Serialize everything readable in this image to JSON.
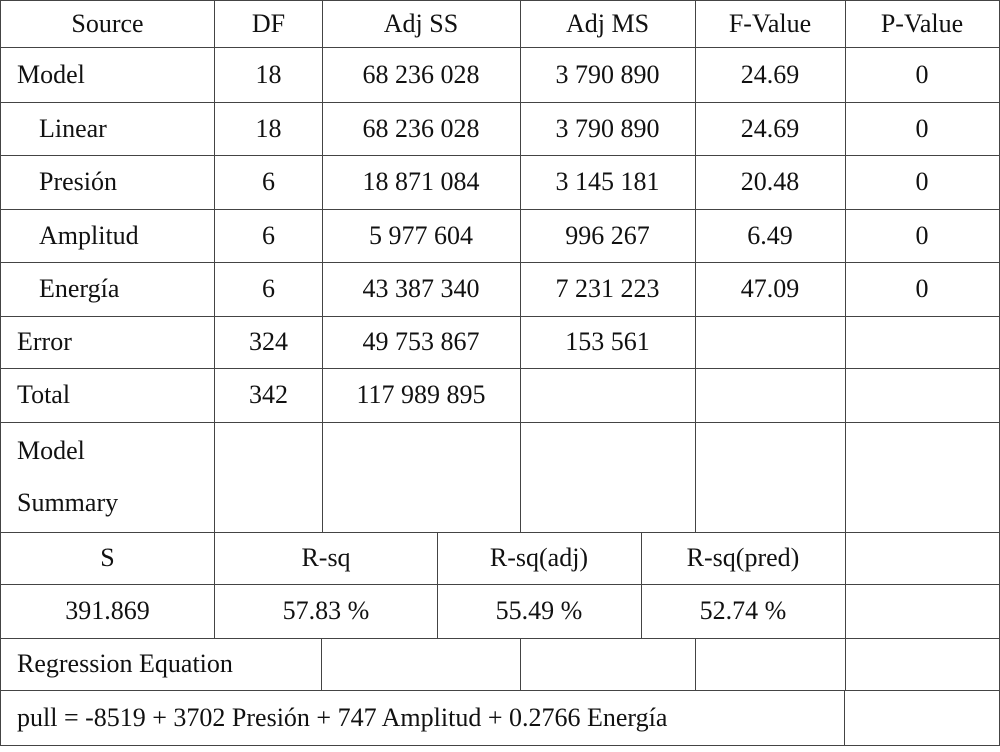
{
  "anova": {
    "header": [
      "Source",
      "DF",
      "Adj SS",
      "Adj MS",
      "F-Value",
      "P-Value"
    ],
    "rows": [
      [
        "Model",
        "18",
        "68 236 028",
        "3 790 890",
        "24.69",
        "0"
      ],
      [
        "Linear",
        "18",
        "68 236 028",
        "3 790 890",
        "24.69",
        "0"
      ],
      [
        "Presión",
        "6",
        "18 871 084",
        "3 145 181",
        "20.48",
        "0"
      ],
      [
        "Amplitud",
        "6",
        "5 977 604",
        "996 267",
        "6.49",
        "0"
      ],
      [
        "Energía",
        "6",
        "43 387 340",
        "7 231 223",
        "47.09",
        "0"
      ],
      [
        "Error",
        "324",
        "49 753 867",
        "153 561"
      ],
      [
        "Total",
        "342",
        "117 989 895"
      ]
    ]
  },
  "model_summary": {
    "title": "Model Summary",
    "header": [
      "S",
      "R-sq",
      "R-sq(adj)",
      "R-sq(pred)"
    ],
    "values": [
      "391.869",
      "57.83 %",
      "55.49 %",
      "52.74 %"
    ]
  },
  "regression": {
    "title": "Regression Equation",
    "equation": "pull = -8519 + 3702 Presión + 747 Amplitud + 0.2766 Energía"
  }
}
